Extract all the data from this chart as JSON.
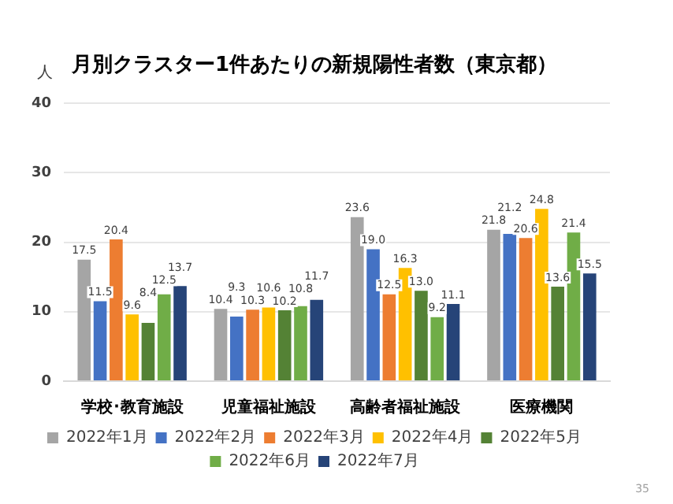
{
  "chart_data": {
    "type": "bar",
    "title": "月別クラスター1件あたりの新規陽性者数（東京都）",
    "ylabel": "人",
    "categories": [
      "学校･教育施設",
      "児童福祉施設",
      "高齢者福祉施設",
      "医療機関"
    ],
    "series": [
      {
        "name": "2022年1月",
        "color": "#a5a5a5",
        "values": [
          17.5,
          10.4,
          23.6,
          21.8
        ],
        "value_labels": [
          "17.5",
          "10.4",
          "23.6",
          "21.8"
        ]
      },
      {
        "name": "2022年2月",
        "color": "#4472c4",
        "values": [
          11.5,
          9.3,
          19.0,
          21.2
        ],
        "value_labels": [
          "11.5",
          "9.3",
          "19.0",
          "21.2"
        ]
      },
      {
        "name": "2022年3月",
        "color": "#ed7d31",
        "values": [
          20.4,
          10.3,
          12.5,
          20.6
        ],
        "value_labels": [
          "20.4",
          "10.3",
          "12.5",
          "20.6"
        ]
      },
      {
        "name": "2022年4月",
        "color": "#ffc000",
        "values": [
          9.6,
          10.6,
          16.3,
          24.8
        ],
        "value_labels": [
          "9.6",
          "10.6",
          "16.3",
          "24.8"
        ]
      },
      {
        "name": "2022年5月",
        "color": "#548235",
        "values": [
          8.4,
          10.2,
          13.0,
          13.6
        ],
        "value_labels": [
          "8.4",
          "10.2",
          "13.0",
          "13.6"
        ]
      },
      {
        "name": "2022年6月",
        "color": "#70ad47",
        "values": [
          12.5,
          10.8,
          9.2,
          21.4
        ],
        "value_labels": [
          "12.5",
          "10.8",
          "9.2",
          "21.4"
        ]
      },
      {
        "name": "2022年7月",
        "color": "#264478",
        "values": [
          13.7,
          11.7,
          11.1,
          15.5
        ],
        "value_labels": [
          "13.7",
          "11.7",
          "11.1",
          "15.5"
        ]
      }
    ],
    "ylim": [
      0,
      40
    ],
    "yticks": [
      0,
      10,
      20,
      30,
      40
    ],
    "grid": "y",
    "legend": "bottom",
    "annotations": [
      "35"
    ]
  }
}
